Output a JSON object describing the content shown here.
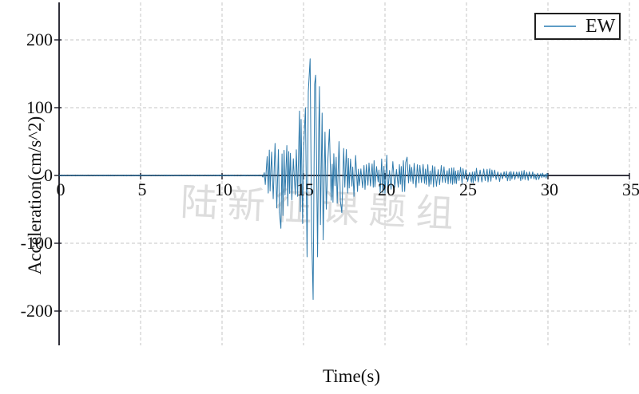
{
  "figure": {
    "background": "#ffffff",
    "watermark": {
      "text": "陆新征课题组",
      "color": "#c3c3c3",
      "opacity": 0.55
    },
    "legend": {
      "label": "EW",
      "line_color": "#5d9cc6",
      "border_color": "#1f1f1f",
      "position": "upper right"
    }
  },
  "chart_data": {
    "type": "line",
    "title": "",
    "xlabel": "Time(s)",
    "ylabel": "Acceleration(cm/s^2)",
    "xlim": [
      0,
      35
    ],
    "ylim": [
      -250,
      255
    ],
    "xticks": [
      0,
      5,
      10,
      15,
      20,
      25,
      30,
      35
    ],
    "yticks": [
      -200,
      -100,
      0,
      100,
      200
    ],
    "grid": "dashed",
    "legend_position": "upper right",
    "series": [
      {
        "name": "EW",
        "color": "#2d79ab",
        "t_start": 0,
        "t_end": 30,
        "units": "cm/s^2",
        "peak_positive": {
          "t": 15.35,
          "value": 172
        },
        "peak_negative": {
          "t": 15.55,
          "value": -183
        },
        "quiet_level_before_onset": 0.8,
        "onset_time": 12.6,
        "envelope": [
          [
            0,
            0.8
          ],
          [
            12.4,
            0.8
          ],
          [
            12.6,
            5
          ],
          [
            12.8,
            38
          ],
          [
            13.0,
            58
          ],
          [
            13.3,
            52
          ],
          [
            13.6,
            68
          ],
          [
            13.9,
            55
          ],
          [
            14.2,
            36
          ],
          [
            14.5,
            45
          ],
          [
            14.75,
            80
          ],
          [
            15.0,
            90
          ],
          [
            15.3,
            130
          ],
          [
            15.6,
            150
          ],
          [
            15.9,
            115
          ],
          [
            16.2,
            88
          ],
          [
            16.5,
            62
          ],
          [
            16.9,
            55
          ],
          [
            17.3,
            48
          ],
          [
            17.7,
            38
          ],
          [
            18.1,
            31
          ],
          [
            18.6,
            26
          ],
          [
            19.0,
            24
          ],
          [
            19.5,
            26
          ],
          [
            20.0,
            28
          ],
          [
            20.6,
            20
          ],
          [
            21.2,
            26
          ],
          [
            21.8,
            18
          ],
          [
            22.4,
            17
          ],
          [
            23.0,
            17
          ],
          [
            23.6,
            14
          ],
          [
            24.2,
            14
          ],
          [
            24.8,
            12
          ],
          [
            25.4,
            12
          ],
          [
            26.0,
            11
          ],
          [
            26.6,
            10
          ],
          [
            27.2,
            9
          ],
          [
            27.8,
            8
          ],
          [
            28.4,
            8
          ],
          [
            29.0,
            7
          ],
          [
            29.5,
            6
          ],
          [
            30,
            4
          ]
        ],
        "spikes": [
          [
            13.6,
            -78
          ],
          [
            14.7,
            95
          ],
          [
            15.05,
            100
          ],
          [
            15.2,
            -120
          ],
          [
            15.35,
            172
          ],
          [
            15.55,
            -183
          ],
          [
            15.7,
            148
          ],
          [
            15.85,
            -120
          ],
          [
            15.95,
            131
          ],
          [
            16.15,
            -95
          ],
          [
            16.5,
            68
          ],
          [
            17.3,
            -55
          ],
          [
            20.0,
            30
          ],
          [
            21.3,
            27
          ]
        ]
      }
    ]
  }
}
